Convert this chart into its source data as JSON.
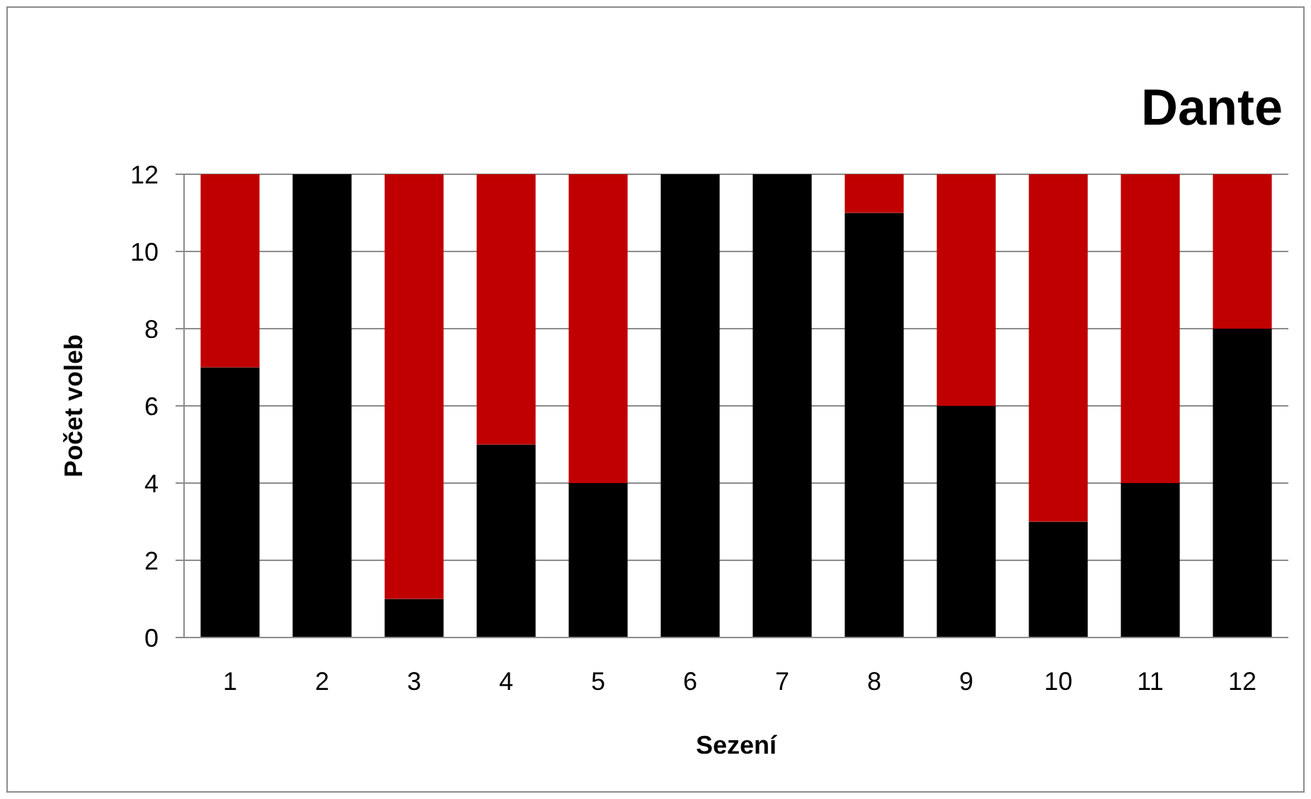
{
  "chart_data": {
    "type": "bar",
    "title": "Dante",
    "xlabel": "Sezení",
    "ylabel": "Počet voleb",
    "stacked": true,
    "categories": [
      "1",
      "2",
      "3",
      "4",
      "5",
      "6",
      "7",
      "8",
      "9",
      "10",
      "11",
      "12"
    ],
    "series": [
      {
        "color": "#000000",
        "values": [
          7,
          12,
          1,
          5,
          4,
          12,
          12,
          11,
          6,
          3,
          4,
          8
        ]
      },
      {
        "color": "#c00000",
        "values": [
          5,
          0,
          11,
          7,
          8,
          0,
          0,
          1,
          6,
          9,
          8,
          4
        ]
      }
    ],
    "ylim": [
      0,
      12
    ],
    "yticks": [
      0,
      2,
      4,
      6,
      8,
      10,
      12
    ],
    "grid": "y"
  }
}
